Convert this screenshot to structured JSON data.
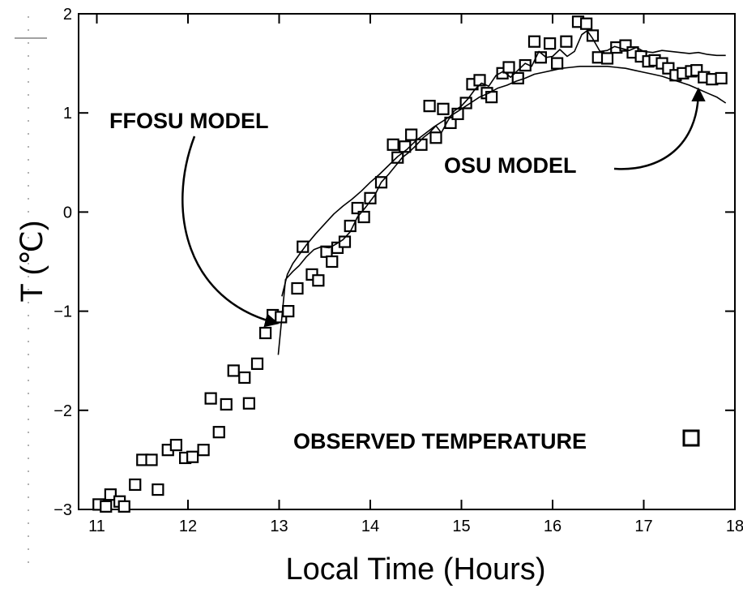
{
  "chart_data": {
    "type": "scatter",
    "title": "",
    "xlabel": "Local Time (Hours)",
    "ylabel": "T (℃)",
    "xlim": [
      10.8,
      18
    ],
    "ylim": [
      -3,
      2
    ],
    "x_ticks": [
      "11",
      "12",
      "13",
      "14",
      "15",
      "16",
      "17",
      "18"
    ],
    "y_ticks": [
      "−3",
      "−2",
      "−1",
      "0",
      "1",
      "2"
    ],
    "x_tick_values": [
      11,
      12,
      13,
      14,
      15,
      16,
      17,
      18
    ],
    "y_tick_values": [
      -3,
      -2,
      -1,
      0,
      1,
      2
    ],
    "grid": false,
    "legend": {
      "label": "OBSERVED TEMPERATURE",
      "marker": "square",
      "placement": "bottom-right"
    },
    "series": [
      {
        "name": "OBSERVED TEMPERATURE",
        "kind": "scatter",
        "marker": "square",
        "points": [
          [
            11.02,
            -2.95
          ],
          [
            11.1,
            -2.97
          ],
          [
            11.15,
            -2.85
          ],
          [
            11.25,
            -2.92
          ],
          [
            11.3,
            -2.97
          ],
          [
            11.42,
            -2.75
          ],
          [
            11.5,
            -2.5
          ],
          [
            11.6,
            -2.5
          ],
          [
            11.67,
            -2.8
          ],
          [
            11.78,
            -2.4
          ],
          [
            11.87,
            -2.35
          ],
          [
            11.97,
            -2.48
          ],
          [
            12.05,
            -2.47
          ],
          [
            12.17,
            -2.4
          ],
          [
            12.25,
            -1.88
          ],
          [
            12.34,
            -2.22
          ],
          [
            12.42,
            -1.94
          ],
          [
            12.5,
            -1.6
          ],
          [
            12.62,
            -1.67
          ],
          [
            12.67,
            -1.93
          ],
          [
            12.76,
            -1.53
          ],
          [
            12.85,
            -1.22
          ],
          [
            12.93,
            -1.04
          ],
          [
            13.02,
            -1.06
          ],
          [
            13.1,
            -1.0
          ],
          [
            13.2,
            -0.77
          ],
          [
            13.26,
            -0.35
          ],
          [
            13.36,
            -0.63
          ],
          [
            13.43,
            -0.69
          ],
          [
            13.52,
            -0.4
          ],
          [
            13.58,
            -0.5
          ],
          [
            13.64,
            -0.36
          ],
          [
            13.72,
            -0.3
          ],
          [
            13.78,
            -0.14
          ],
          [
            13.86,
            0.04
          ],
          [
            13.93,
            -0.05
          ],
          [
            14.0,
            0.14
          ],
          [
            14.12,
            0.3
          ],
          [
            14.25,
            0.68
          ],
          [
            14.3,
            0.55
          ],
          [
            14.38,
            0.66
          ],
          [
            14.45,
            0.78
          ],
          [
            14.56,
            0.68
          ],
          [
            14.65,
            1.07
          ],
          [
            14.72,
            0.75
          ],
          [
            14.8,
            1.04
          ],
          [
            14.88,
            0.9
          ],
          [
            14.96,
            0.99
          ],
          [
            15.05,
            1.1
          ],
          [
            15.12,
            1.29
          ],
          [
            15.2,
            1.33
          ],
          [
            15.28,
            1.2
          ],
          [
            15.33,
            1.16
          ],
          [
            15.45,
            1.4
          ],
          [
            15.52,
            1.46
          ],
          [
            15.62,
            1.35
          ],
          [
            15.7,
            1.48
          ],
          [
            15.8,
            1.72
          ],
          [
            15.87,
            1.56
          ],
          [
            15.97,
            1.7
          ],
          [
            16.05,
            1.5
          ],
          [
            16.15,
            1.72
          ],
          [
            16.28,
            1.92
          ],
          [
            16.37,
            1.9
          ],
          [
            16.44,
            1.78
          ],
          [
            16.5,
            1.56
          ],
          [
            16.6,
            1.55
          ],
          [
            16.7,
            1.66
          ],
          [
            16.8,
            1.68
          ],
          [
            16.88,
            1.61
          ],
          [
            16.97,
            1.57
          ],
          [
            17.05,
            1.52
          ],
          [
            17.12,
            1.53
          ],
          [
            17.2,
            1.5
          ],
          [
            17.27,
            1.45
          ],
          [
            17.35,
            1.38
          ],
          [
            17.43,
            1.4
          ],
          [
            17.52,
            1.42
          ],
          [
            17.58,
            1.43
          ],
          [
            17.66,
            1.36
          ],
          [
            17.75,
            1.34
          ],
          [
            17.85,
            1.35
          ]
        ]
      },
      {
        "name": "FFOSU MODEL",
        "kind": "line",
        "points": [
          [
            12.99,
            -1.44
          ],
          [
            13.07,
            -0.68
          ],
          [
            13.15,
            -0.6
          ],
          [
            13.22,
            -0.54
          ],
          [
            13.3,
            -0.45
          ],
          [
            13.38,
            -0.38
          ],
          [
            13.46,
            -0.35
          ],
          [
            13.55,
            -0.36
          ],
          [
            13.63,
            -0.32
          ],
          [
            13.7,
            -0.28
          ],
          [
            13.78,
            -0.2
          ],
          [
            13.86,
            -0.05
          ],
          [
            13.95,
            0.05
          ],
          [
            14.05,
            0.17
          ],
          [
            14.12,
            0.3
          ],
          [
            14.2,
            0.38
          ],
          [
            14.28,
            0.47
          ],
          [
            14.35,
            0.55
          ],
          [
            14.42,
            0.6
          ],
          [
            14.5,
            0.67
          ],
          [
            14.58,
            0.75
          ],
          [
            14.65,
            0.8
          ],
          [
            14.72,
            0.87
          ],
          [
            14.78,
            0.8
          ],
          [
            14.85,
            0.92
          ],
          [
            14.92,
            1.02
          ],
          [
            15.0,
            1.07
          ],
          [
            15.07,
            1.14
          ],
          [
            15.15,
            1.24
          ],
          [
            15.22,
            1.3
          ],
          [
            15.3,
            1.27
          ],
          [
            15.38,
            1.38
          ],
          [
            15.46,
            1.42
          ],
          [
            15.54,
            1.36
          ],
          [
            15.62,
            1.43
          ],
          [
            15.7,
            1.5
          ],
          [
            15.77,
            1.47
          ],
          [
            15.85,
            1.62
          ],
          [
            15.93,
            1.56
          ],
          [
            16.0,
            1.57
          ],
          [
            16.08,
            1.64
          ],
          [
            16.16,
            1.57
          ],
          [
            16.24,
            1.62
          ],
          [
            16.32,
            1.79
          ],
          [
            16.38,
            1.83
          ],
          [
            16.44,
            1.75
          ],
          [
            16.52,
            1.62
          ],
          [
            16.6,
            1.63
          ],
          [
            16.68,
            1.67
          ],
          [
            16.76,
            1.65
          ],
          [
            16.84,
            1.63
          ],
          [
            16.92,
            1.66
          ],
          [
            17.0,
            1.62
          ],
          [
            17.1,
            1.61
          ],
          [
            17.2,
            1.63
          ],
          [
            17.3,
            1.62
          ],
          [
            17.4,
            1.61
          ],
          [
            17.5,
            1.6
          ],
          [
            17.6,
            1.61
          ],
          [
            17.7,
            1.59
          ],
          [
            17.8,
            1.58
          ],
          [
            17.9,
            1.58
          ]
        ]
      },
      {
        "name": "OSU MODEL",
        "kind": "line",
        "points": [
          [
            13.03,
            -0.85
          ],
          [
            13.09,
            -0.63
          ],
          [
            13.15,
            -0.52
          ],
          [
            13.22,
            -0.43
          ],
          [
            13.3,
            -0.33
          ],
          [
            13.4,
            -0.22
          ],
          [
            13.5,
            -0.12
          ],
          [
            13.6,
            -0.02
          ],
          [
            13.7,
            0.06
          ],
          [
            13.8,
            0.13
          ],
          [
            13.9,
            0.21
          ],
          [
            14.0,
            0.3
          ],
          [
            14.1,
            0.38
          ],
          [
            14.2,
            0.47
          ],
          [
            14.3,
            0.56
          ],
          [
            14.4,
            0.63
          ],
          [
            14.5,
            0.72
          ],
          [
            14.6,
            0.79
          ],
          [
            14.7,
            0.86
          ],
          [
            14.8,
            0.92
          ],
          [
            14.9,
            0.98
          ],
          [
            15.0,
            1.04
          ],
          [
            15.1,
            1.1
          ],
          [
            15.2,
            1.16
          ],
          [
            15.3,
            1.2
          ],
          [
            15.4,
            1.25
          ],
          [
            15.5,
            1.28
          ],
          [
            15.6,
            1.32
          ],
          [
            15.7,
            1.35
          ],
          [
            15.8,
            1.39
          ],
          [
            15.9,
            1.41
          ],
          [
            16.0,
            1.43
          ],
          [
            16.1,
            1.45
          ],
          [
            16.2,
            1.46
          ],
          [
            16.3,
            1.47
          ],
          [
            16.4,
            1.47
          ],
          [
            16.5,
            1.47
          ],
          [
            16.6,
            1.47
          ],
          [
            16.7,
            1.46
          ],
          [
            16.8,
            1.45
          ],
          [
            16.9,
            1.43
          ],
          [
            17.0,
            1.41
          ],
          [
            17.1,
            1.39
          ],
          [
            17.2,
            1.37
          ],
          [
            17.3,
            1.34
          ],
          [
            17.4,
            1.31
          ],
          [
            17.5,
            1.28
          ],
          [
            17.6,
            1.24
          ],
          [
            17.7,
            1.2
          ],
          [
            17.8,
            1.16
          ],
          [
            17.9,
            1.1
          ]
        ]
      }
    ],
    "annotations": [
      {
        "text": "FFOSU MODEL",
        "points_to": "FFOSU MODEL",
        "target": [
          12.97,
          -1.12
        ]
      },
      {
        "text": "OSU MODEL",
        "points_to": "OSU MODEL",
        "target": [
          17.6,
          1.23
        ]
      }
    ]
  }
}
